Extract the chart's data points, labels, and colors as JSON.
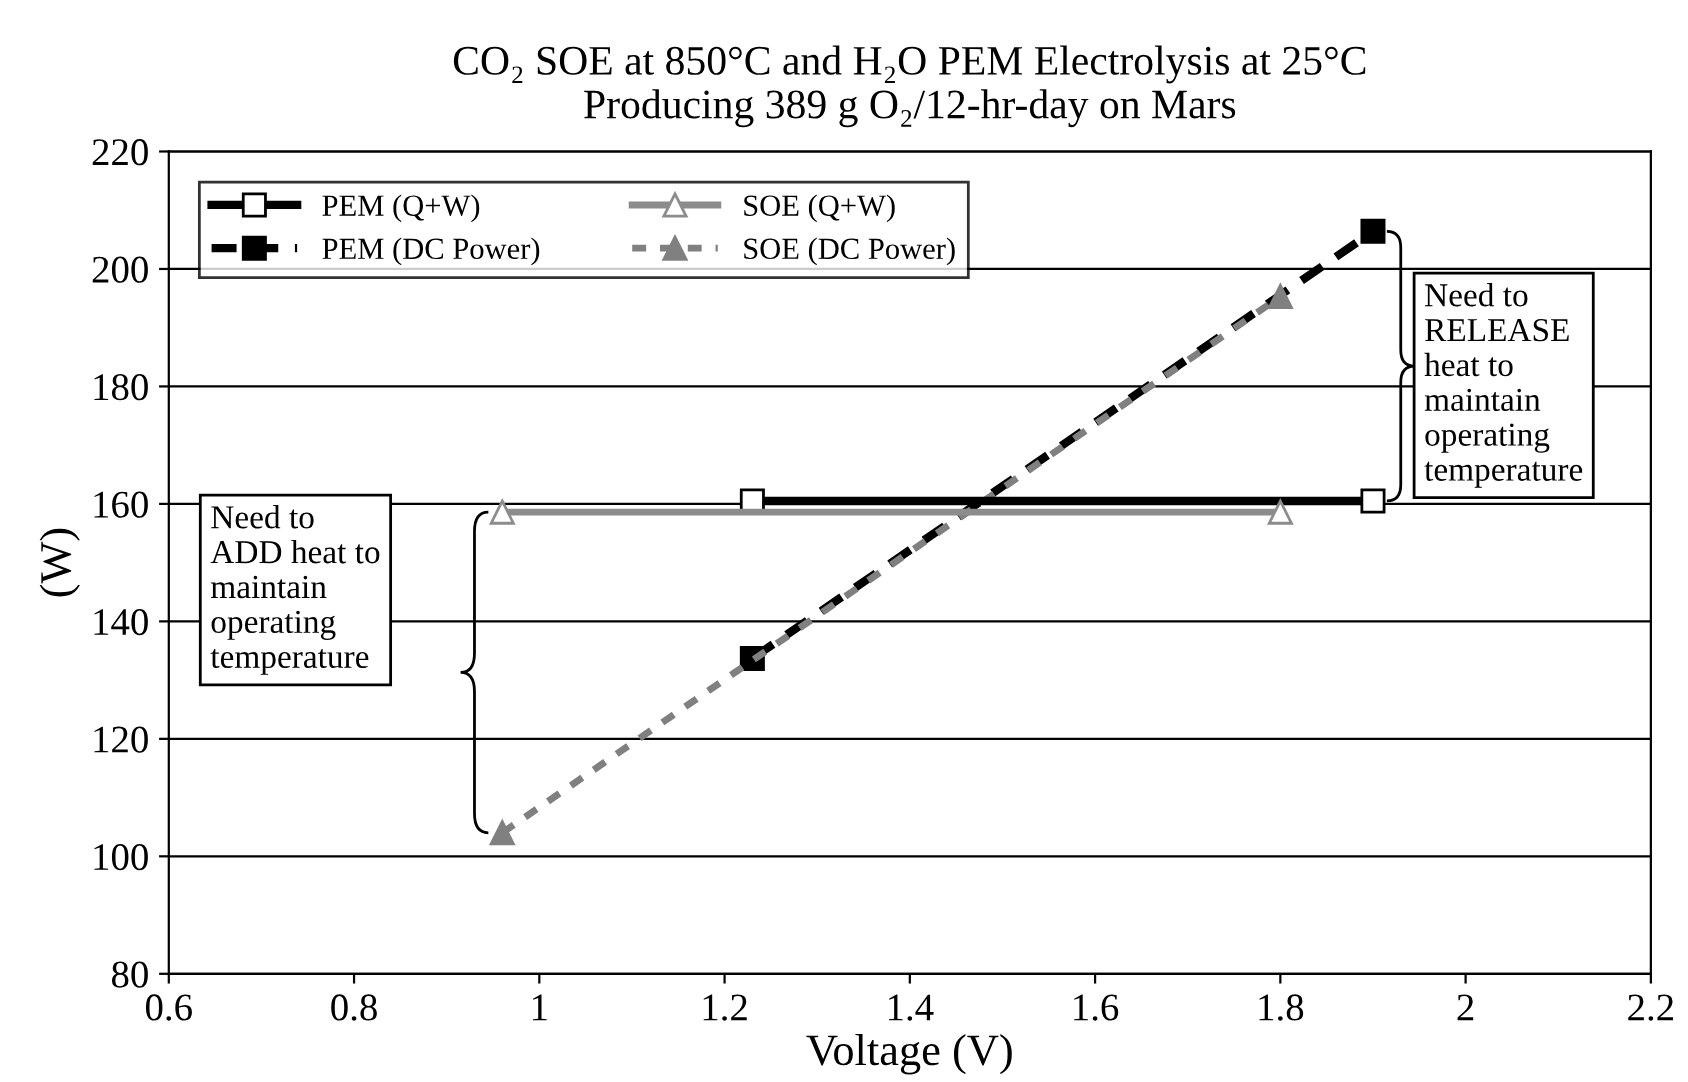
{
  "chart_data": {
    "type": "line",
    "title": "CO₂ SOE at 850°C and H₂O PEM Electrolysis at 25°C\nProducing 389 g O₂/12-hr-day on Mars",
    "xlabel": "Voltage (V)",
    "ylabel": "(W)",
    "series": [
      {
        "name": "PEM (Q+W)",
        "color": "#000000",
        "x": [
          1.23,
          1.9
        ],
        "values": [
          160.5,
          160.5
        ],
        "marker": "square",
        "line_style": "solid"
      },
      {
        "name": "SOE (Q+W)",
        "color": "#8c8c8c",
        "x": [
          0.96,
          1.8
        ],
        "values": [
          158.6,
          158.6
        ],
        "marker": "triangle",
        "line_style": "solid"
      },
      {
        "name": "PEM (DC Power)",
        "color": "#000000",
        "x": [
          1.23,
          1.9
        ],
        "values": [
          133.7,
          206.4
        ],
        "marker": "square",
        "line_style": "dashed"
      },
      {
        "name": "SOE (DC Power)",
        "color": "#808080",
        "x": [
          0.96,
          1.8
        ],
        "values": [
          104,
          195.3
        ],
        "marker": "triangle",
        "line_style": "dotted"
      }
    ],
    "annotations": [
      {
        "text": "Need to\nRELEASE\nheat to\nmaintain\noperating\ntemperature",
        "x": 1.9,
        "y": 206.4
      },
      "Need to\nADD heat to\nmaintain\noperating\ntemperature"
    ],
    "xlim": [
      0.6,
      2.2
    ],
    "xticks": [
      0.6,
      0.8,
      1,
      1.2,
      1.4,
      1.6,
      1.8,
      2,
      2.2
    ],
    "ylim": [
      80,
      220
    ],
    "yticks": [
      80,
      100,
      120,
      140,
      160,
      180,
      200,
      220
    ],
    "grid": "y",
    "legend": "top left"
  }
}
